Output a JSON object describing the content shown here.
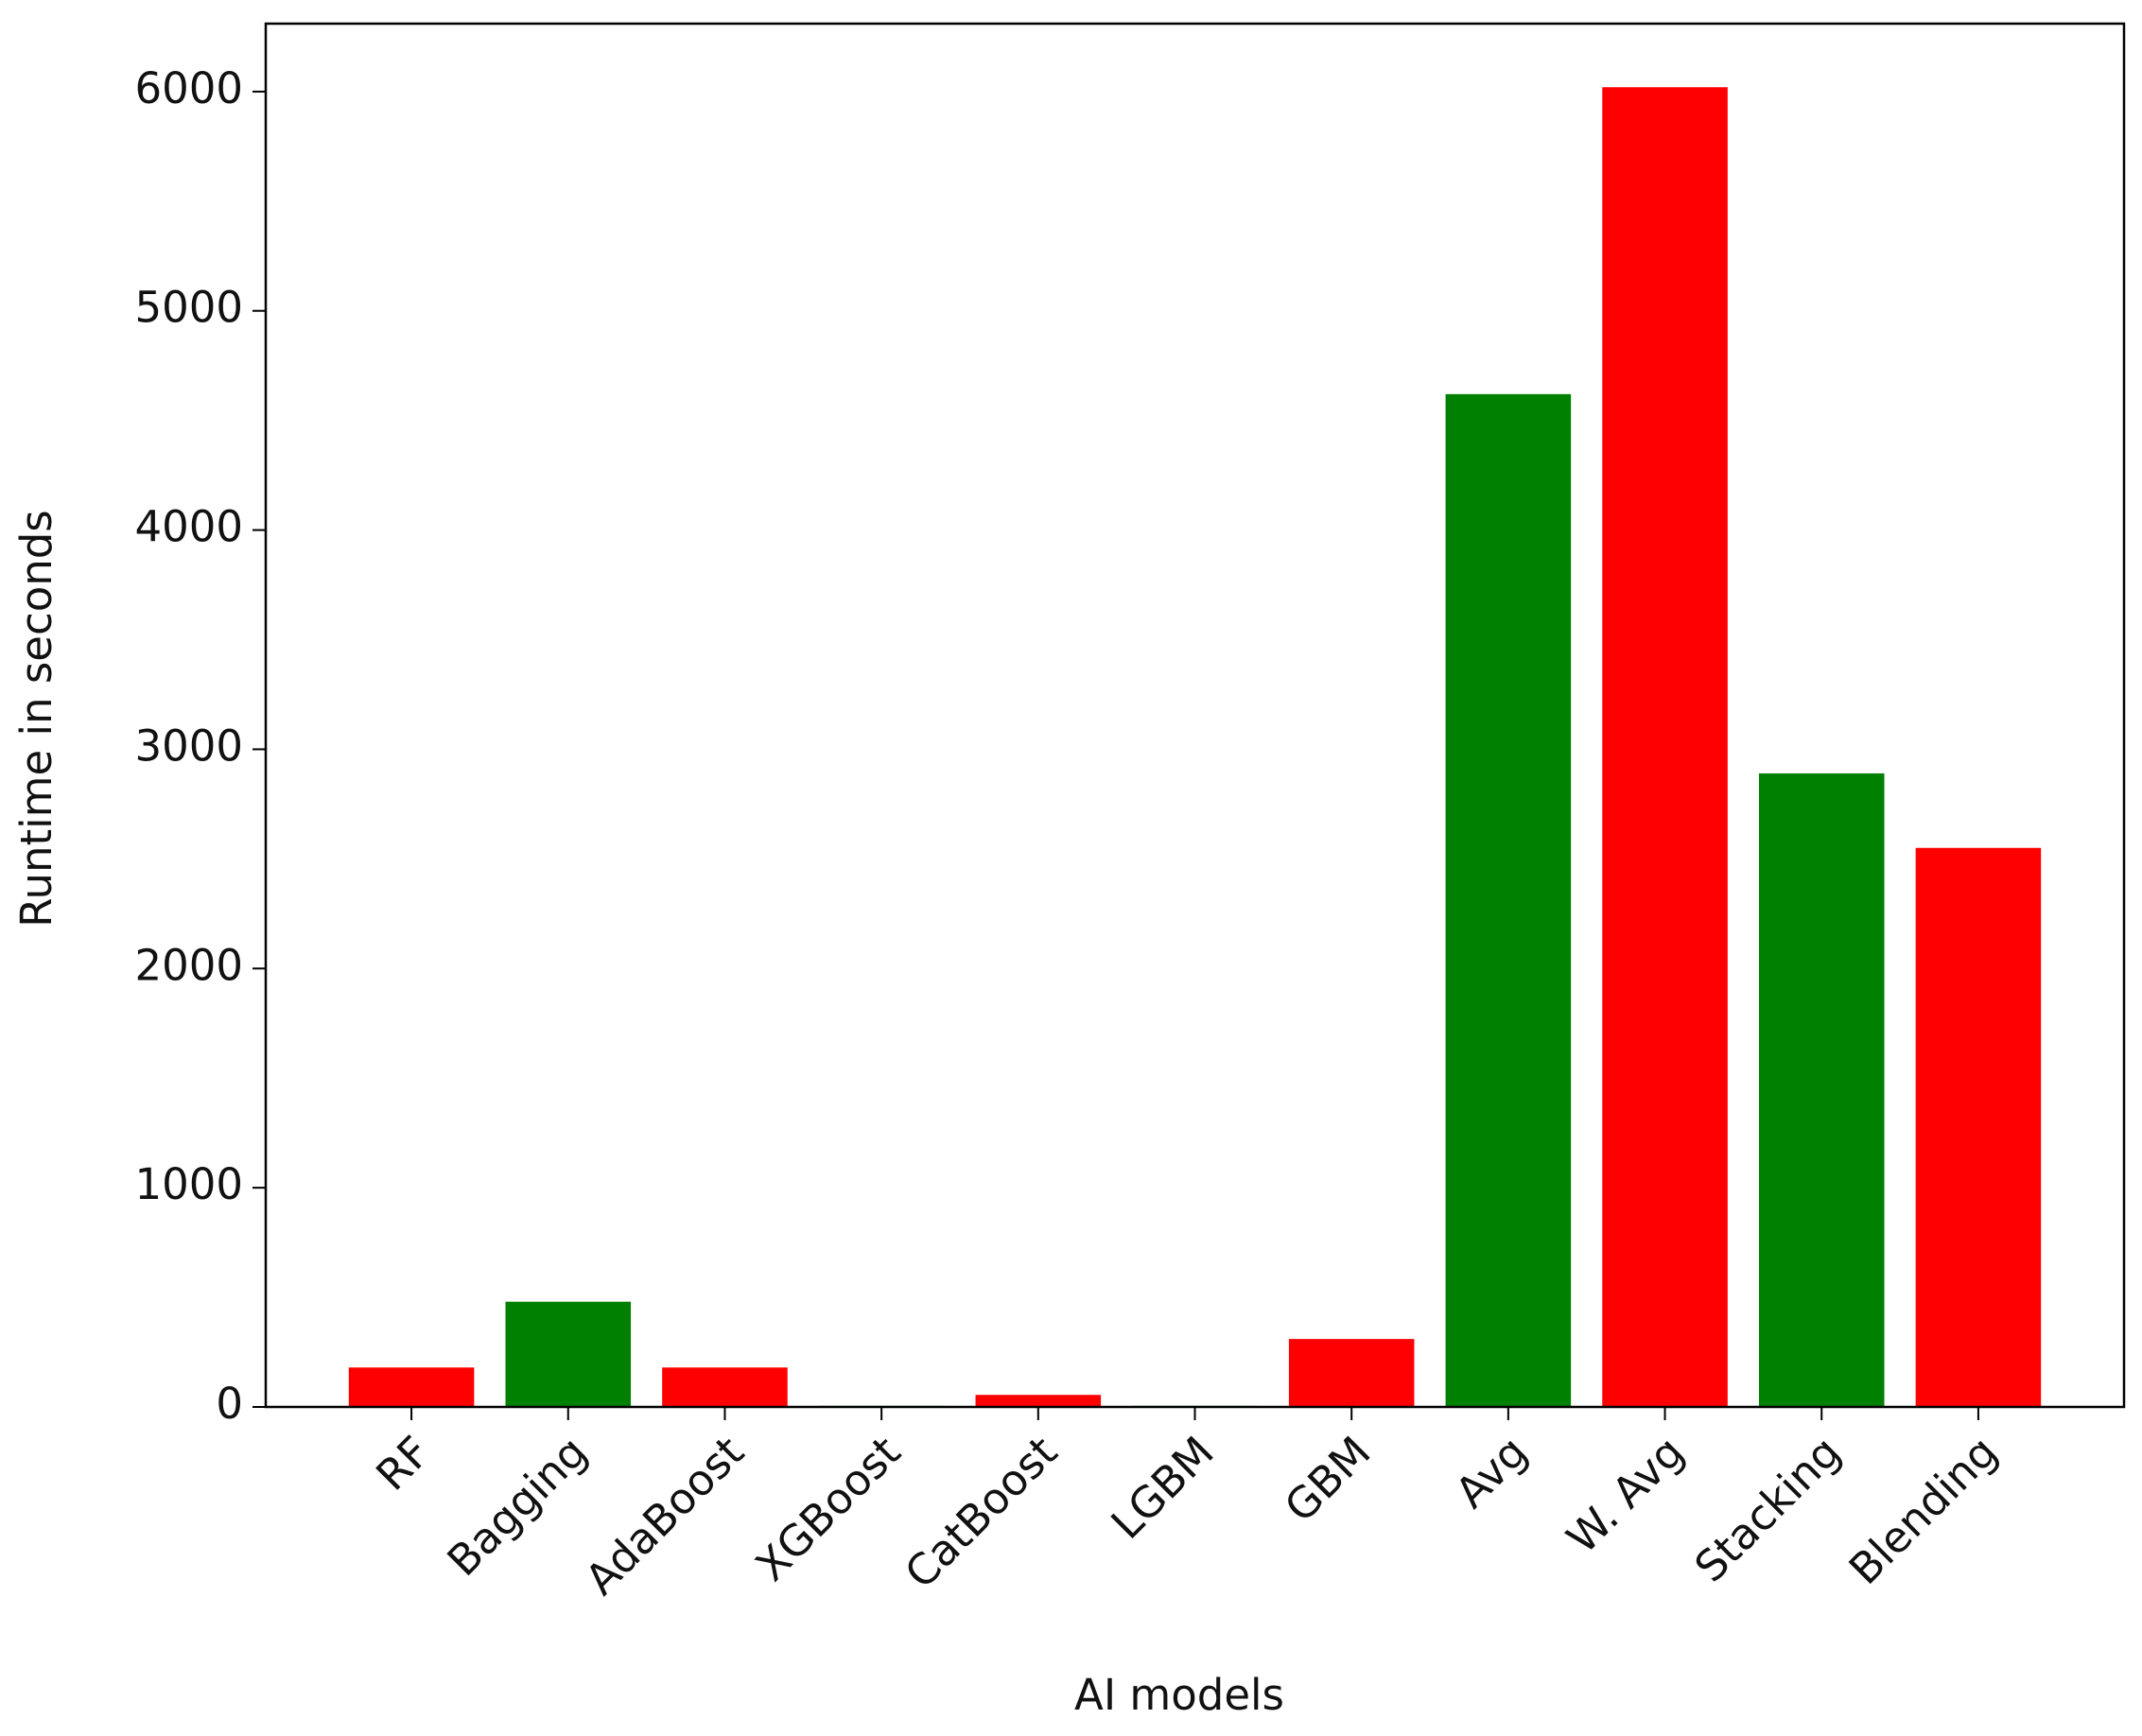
{
  "chart_data": {
    "type": "bar",
    "x_label": "AI models",
    "y_label": "Runtime in seconds",
    "categories": [
      "RF",
      "Bagging",
      "AdaBoost",
      "XGBoost",
      "CatBoost",
      "LGBM",
      "GBM",
      "Avg",
      "W. Avg",
      "Stacking",
      "Blending"
    ],
    "values": [
      180,
      480,
      180,
      5,
      55,
      5,
      310,
      4620,
      6020,
      2890,
      2550
    ],
    "colors": [
      "#ff0000",
      "#008000",
      "#ff0000",
      "#008000",
      "#ff0000",
      "#008000",
      "#ff0000",
      "#008000",
      "#ff0000",
      "#008000",
      "#ff0000"
    ],
    "ylim": [
      0,
      6310
    ],
    "yticks": [
      0,
      1000,
      2000,
      3000,
      4000,
      5000,
      6000
    ],
    "grid": false
  }
}
